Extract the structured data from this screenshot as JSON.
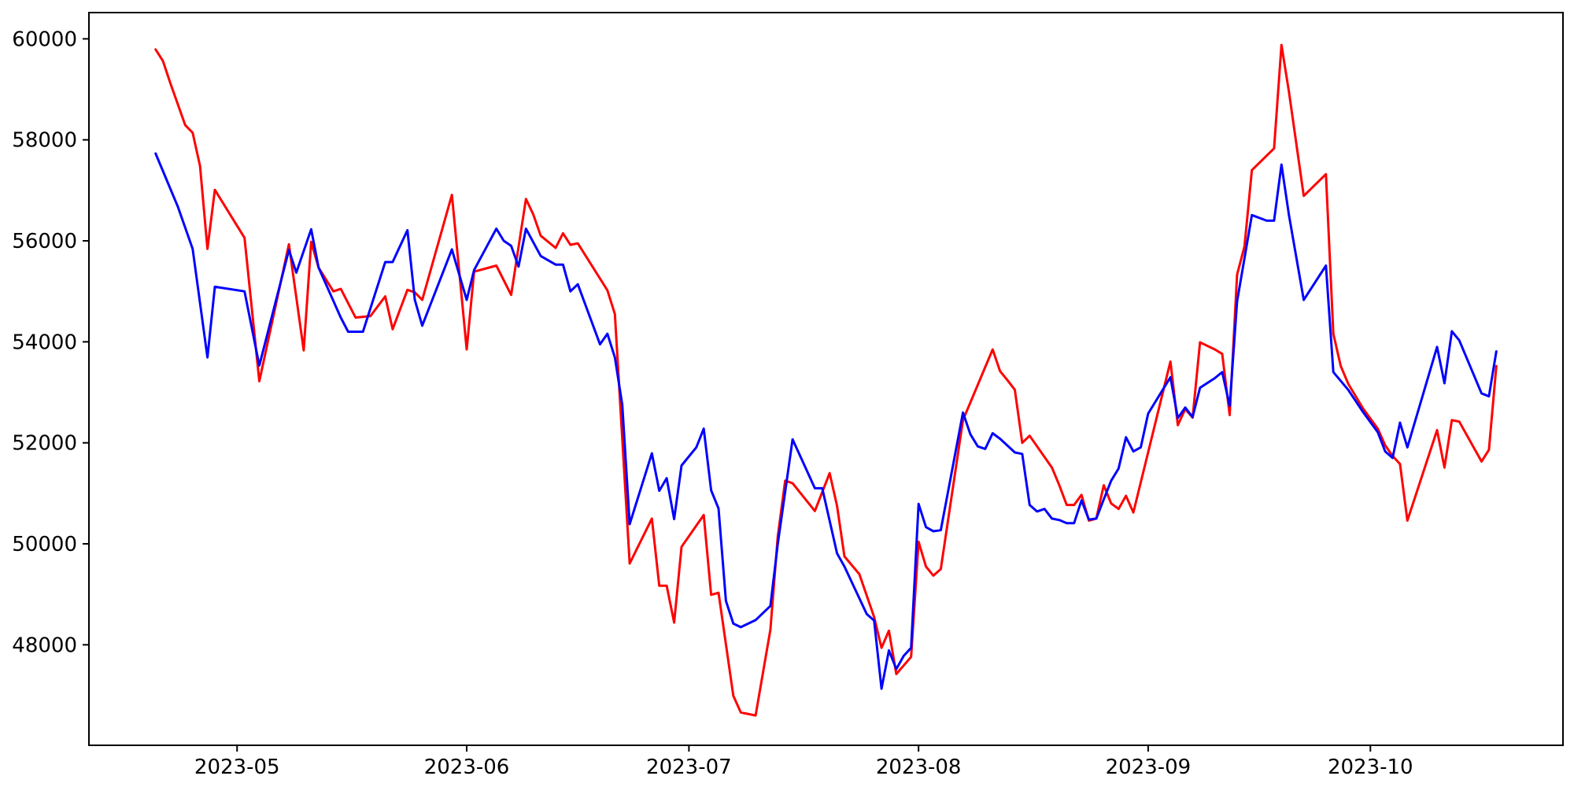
{
  "figure": {
    "background": "#ffffff",
    "axis_color": "#000000",
    "line_width": 3
  },
  "chart_data": {
    "type": "line",
    "title": "",
    "xlabel": "",
    "ylabel": "",
    "grid": false,
    "legend": null,
    "x_tick_labels": [
      "2023-05",
      "2023-06",
      "2023-07",
      "2023-08",
      "2023-09",
      "2023-10"
    ],
    "x_tick_dates": [
      "2023-05-01",
      "2023-06-01",
      "2023-07-01",
      "2023-08-01",
      "2023-09-01",
      "2023-10-01"
    ],
    "y_ticks": [
      48000,
      50000,
      52000,
      54000,
      56000,
      58000,
      60000
    ],
    "x_range": [
      "2023-04-11",
      "2023-10-27"
    ],
    "y_range": [
      46010,
      60520
    ],
    "series": [
      {
        "name": "red",
        "color": "#ff0000",
        "points": [
          [
            "2023-04-20",
            59790
          ],
          [
            "2023-04-21",
            59560
          ],
          [
            "2023-04-22",
            59120
          ],
          [
            "2023-04-24",
            58290
          ],
          [
            "2023-04-25",
            58140
          ],
          [
            "2023-04-26",
            57480
          ],
          [
            "2023-04-27",
            55840
          ],
          [
            "2023-04-28",
            57010
          ],
          [
            "2023-05-02",
            56060
          ],
          [
            "2023-05-04",
            53220
          ],
          [
            "2023-05-08",
            55930
          ],
          [
            "2023-05-10",
            53830
          ],
          [
            "2023-05-11",
            55980
          ],
          [
            "2023-05-12",
            55470
          ],
          [
            "2023-05-14",
            55000
          ],
          [
            "2023-05-15",
            55050
          ],
          [
            "2023-05-17",
            54480
          ],
          [
            "2023-05-19",
            54510
          ],
          [
            "2023-05-21",
            54900
          ],
          [
            "2023-05-22",
            54250
          ],
          [
            "2023-05-24",
            55030
          ],
          [
            "2023-05-25",
            54980
          ],
          [
            "2023-05-26",
            54830
          ],
          [
            "2023-05-30",
            56910
          ],
          [
            "2023-06-01",
            53850
          ],
          [
            "2023-06-02",
            55390
          ],
          [
            "2023-06-05",
            55510
          ],
          [
            "2023-06-07",
            54930
          ],
          [
            "2023-06-09",
            56830
          ],
          [
            "2023-06-10",
            56520
          ],
          [
            "2023-06-11",
            56100
          ],
          [
            "2023-06-13",
            55860
          ],
          [
            "2023-06-14",
            56150
          ],
          [
            "2023-06-15",
            55920
          ],
          [
            "2023-06-16",
            55950
          ],
          [
            "2023-06-20",
            55020
          ],
          [
            "2023-06-21",
            54550
          ],
          [
            "2023-06-23",
            49610
          ],
          [
            "2023-06-26",
            50500
          ],
          [
            "2023-06-27",
            49170
          ],
          [
            "2023-06-28",
            49170
          ],
          [
            "2023-06-29",
            48440
          ],
          [
            "2023-06-30",
            49940
          ],
          [
            "2023-07-03",
            50570
          ],
          [
            "2023-07-04",
            48990
          ],
          [
            "2023-07-05",
            49030
          ],
          [
            "2023-07-07",
            46990
          ],
          [
            "2023-07-08",
            46660
          ],
          [
            "2023-07-10",
            46600
          ],
          [
            "2023-07-12",
            48300
          ],
          [
            "2023-07-13",
            50150
          ],
          [
            "2023-07-14",
            51250
          ],
          [
            "2023-07-15",
            51200
          ],
          [
            "2023-07-18",
            50650
          ],
          [
            "2023-07-20",
            51400
          ],
          [
            "2023-07-21",
            50750
          ],
          [
            "2023-07-22",
            49750
          ],
          [
            "2023-07-24",
            49400
          ],
          [
            "2023-07-26",
            48550
          ],
          [
            "2023-07-27",
            47940
          ],
          [
            "2023-07-28",
            48280
          ],
          [
            "2023-07-29",
            47420
          ],
          [
            "2023-07-31",
            47760
          ],
          [
            "2023-08-01",
            50040
          ],
          [
            "2023-08-02",
            49550
          ],
          [
            "2023-08-03",
            49370
          ],
          [
            "2023-08-04",
            49500
          ],
          [
            "2023-08-07",
            52450
          ],
          [
            "2023-08-11",
            53850
          ],
          [
            "2023-08-12",
            53420
          ],
          [
            "2023-08-13",
            53240
          ],
          [
            "2023-08-14",
            53050
          ],
          [
            "2023-08-15",
            52000
          ],
          [
            "2023-08-16",
            52140
          ],
          [
            "2023-08-19",
            51510
          ],
          [
            "2023-08-20",
            51160
          ],
          [
            "2023-08-21",
            50770
          ],
          [
            "2023-08-22",
            50770
          ],
          [
            "2023-08-23",
            50970
          ],
          [
            "2023-08-24",
            50460
          ],
          [
            "2023-08-25",
            50500
          ],
          [
            "2023-08-26",
            51160
          ],
          [
            "2023-08-27",
            50800
          ],
          [
            "2023-08-28",
            50690
          ],
          [
            "2023-08-29",
            50950
          ],
          [
            "2023-08-30",
            50620
          ],
          [
            "2023-09-04",
            53610
          ],
          [
            "2023-09-05",
            52350
          ],
          [
            "2023-09-06",
            52670
          ],
          [
            "2023-09-07",
            52500
          ],
          [
            "2023-09-08",
            53990
          ],
          [
            "2023-09-10",
            53850
          ],
          [
            "2023-09-11",
            53760
          ],
          [
            "2023-09-12",
            52550
          ],
          [
            "2023-09-13",
            55330
          ],
          [
            "2023-09-14",
            55890
          ],
          [
            "2023-09-15",
            57400
          ],
          [
            "2023-09-18",
            57830
          ],
          [
            "2023-09-19",
            59880
          ],
          [
            "2023-09-20",
            58950
          ],
          [
            "2023-09-22",
            56890
          ],
          [
            "2023-09-25",
            57320
          ],
          [
            "2023-09-26",
            54160
          ],
          [
            "2023-09-27",
            53520
          ],
          [
            "2023-09-28",
            53170
          ],
          [
            "2023-09-30",
            52680
          ],
          [
            "2023-10-02",
            52280
          ],
          [
            "2023-10-03",
            51950
          ],
          [
            "2023-10-04",
            51740
          ],
          [
            "2023-10-05",
            51580
          ],
          [
            "2023-10-06",
            50460
          ],
          [
            "2023-10-10",
            52250
          ],
          [
            "2023-10-11",
            51510
          ],
          [
            "2023-10-12",
            52450
          ],
          [
            "2023-10-13",
            52420
          ],
          [
            "2023-10-16",
            51630
          ],
          [
            "2023-10-17",
            51860
          ],
          [
            "2023-10-18",
            53520
          ]
        ]
      },
      {
        "name": "blue",
        "color": "#0000ff",
        "points": [
          [
            "2023-04-20",
            57730
          ],
          [
            "2023-04-23",
            56680
          ],
          [
            "2023-04-25",
            55840
          ],
          [
            "2023-04-27",
            53690
          ],
          [
            "2023-04-28",
            55090
          ],
          [
            "2023-05-02",
            55000
          ],
          [
            "2023-05-04",
            53530
          ],
          [
            "2023-05-08",
            55820
          ],
          [
            "2023-05-09",
            55370
          ],
          [
            "2023-05-11",
            56230
          ],
          [
            "2023-05-12",
            55470
          ],
          [
            "2023-05-15",
            54480
          ],
          [
            "2023-05-16",
            54200
          ],
          [
            "2023-05-18",
            54200
          ],
          [
            "2023-05-21",
            55580
          ],
          [
            "2023-05-22",
            55580
          ],
          [
            "2023-05-24",
            56210
          ],
          [
            "2023-05-25",
            54830
          ],
          [
            "2023-05-26",
            54320
          ],
          [
            "2023-05-30",
            55830
          ],
          [
            "2023-06-01",
            54830
          ],
          [
            "2023-06-02",
            55420
          ],
          [
            "2023-06-05",
            56240
          ],
          [
            "2023-06-06",
            56000
          ],
          [
            "2023-06-07",
            55900
          ],
          [
            "2023-06-08",
            55490
          ],
          [
            "2023-06-09",
            56240
          ],
          [
            "2023-06-11",
            55700
          ],
          [
            "2023-06-13",
            55530
          ],
          [
            "2023-06-14",
            55530
          ],
          [
            "2023-06-15",
            55000
          ],
          [
            "2023-06-16",
            55140
          ],
          [
            "2023-06-19",
            53950
          ],
          [
            "2023-06-20",
            54160
          ],
          [
            "2023-06-21",
            53690
          ],
          [
            "2023-06-22",
            52750
          ],
          [
            "2023-06-23",
            50390
          ],
          [
            "2023-06-26",
            51790
          ],
          [
            "2023-06-27",
            51050
          ],
          [
            "2023-06-28",
            51300
          ],
          [
            "2023-06-29",
            50490
          ],
          [
            "2023-06-30",
            51550
          ],
          [
            "2023-07-02",
            51910
          ],
          [
            "2023-07-03",
            52280
          ],
          [
            "2023-07-04",
            51060
          ],
          [
            "2023-07-05",
            50700
          ],
          [
            "2023-07-06",
            48870
          ],
          [
            "2023-07-07",
            48420
          ],
          [
            "2023-07-08",
            48350
          ],
          [
            "2023-07-10",
            48490
          ],
          [
            "2023-07-11",
            48630
          ],
          [
            "2023-07-12",
            48770
          ],
          [
            "2023-07-13",
            50000
          ],
          [
            "2023-07-15",
            52070
          ],
          [
            "2023-07-18",
            51100
          ],
          [
            "2023-07-19",
            51100
          ],
          [
            "2023-07-21",
            49810
          ],
          [
            "2023-07-22",
            49550
          ],
          [
            "2023-07-25",
            48610
          ],
          [
            "2023-07-26",
            48480
          ],
          [
            "2023-07-27",
            47130
          ],
          [
            "2023-07-28",
            47890
          ],
          [
            "2023-07-29",
            47520
          ],
          [
            "2023-07-30",
            47780
          ],
          [
            "2023-07-31",
            47940
          ],
          [
            "2023-08-01",
            50790
          ],
          [
            "2023-08-02",
            50330
          ],
          [
            "2023-08-03",
            50250
          ],
          [
            "2023-08-04",
            50270
          ],
          [
            "2023-08-07",
            52600
          ],
          [
            "2023-08-08",
            52170
          ],
          [
            "2023-08-09",
            51930
          ],
          [
            "2023-08-10",
            51880
          ],
          [
            "2023-08-11",
            52190
          ],
          [
            "2023-08-12",
            52080
          ],
          [
            "2023-08-14",
            51810
          ],
          [
            "2023-08-15",
            51780
          ],
          [
            "2023-08-16",
            50770
          ],
          [
            "2023-08-17",
            50640
          ],
          [
            "2023-08-18",
            50690
          ],
          [
            "2023-08-19",
            50500
          ],
          [
            "2023-08-20",
            50470
          ],
          [
            "2023-08-21",
            50410
          ],
          [
            "2023-08-22",
            50410
          ],
          [
            "2023-08-23",
            50860
          ],
          [
            "2023-08-24",
            50480
          ],
          [
            "2023-08-25",
            50500
          ],
          [
            "2023-08-26",
            50880
          ],
          [
            "2023-08-27",
            51250
          ],
          [
            "2023-08-28",
            51490
          ],
          [
            "2023-08-29",
            52110
          ],
          [
            "2023-08-30",
            51830
          ],
          [
            "2023-08-31",
            51910
          ],
          [
            "2023-09-01",
            52580
          ],
          [
            "2023-09-04",
            53300
          ],
          [
            "2023-09-05",
            52490
          ],
          [
            "2023-09-06",
            52700
          ],
          [
            "2023-09-07",
            52510
          ],
          [
            "2023-09-08",
            53090
          ],
          [
            "2023-09-10",
            53280
          ],
          [
            "2023-09-11",
            53400
          ],
          [
            "2023-09-12",
            52730
          ],
          [
            "2023-09-13",
            54800
          ],
          [
            "2023-09-15",
            56510
          ],
          [
            "2023-09-17",
            56400
          ],
          [
            "2023-09-18",
            56400
          ],
          [
            "2023-09-19",
            57510
          ],
          [
            "2023-09-20",
            56510
          ],
          [
            "2023-09-22",
            54830
          ],
          [
            "2023-09-25",
            55510
          ],
          [
            "2023-09-26",
            53400
          ],
          [
            "2023-09-28",
            53050
          ],
          [
            "2023-09-30",
            52610
          ],
          [
            "2023-10-02",
            52210
          ],
          [
            "2023-10-03",
            51830
          ],
          [
            "2023-10-04",
            51700
          ],
          [
            "2023-10-05",
            52400
          ],
          [
            "2023-10-06",
            51910
          ],
          [
            "2023-10-10",
            53900
          ],
          [
            "2023-10-11",
            53180
          ],
          [
            "2023-10-12",
            54210
          ],
          [
            "2023-10-13",
            54030
          ],
          [
            "2023-10-16",
            52980
          ],
          [
            "2023-10-17",
            52920
          ],
          [
            "2023-10-18",
            53810
          ]
        ]
      }
    ]
  }
}
